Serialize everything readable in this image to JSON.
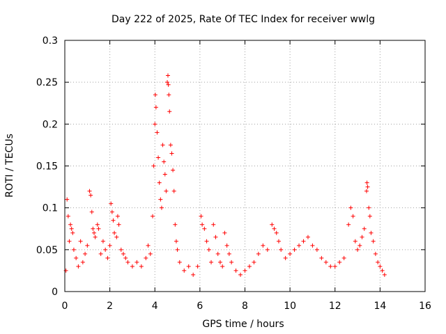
{
  "chart_data": {
    "type": "scatter",
    "title": "Day 222 of 2025, Rate Of TEC Index for receiver wwlg",
    "xlabel": "GPS time / hours",
    "ylabel": "ROTI / TECUs",
    "xlim": [
      0,
      16
    ],
    "ylim": [
      0,
      0.3
    ],
    "x_ticks": [
      0,
      2,
      4,
      6,
      8,
      10,
      12,
      14,
      16
    ],
    "x_tick_labels": [
      "0",
      "2",
      "4",
      "6",
      "8",
      "10",
      "12",
      "14",
      "16"
    ],
    "y_ticks": [
      0,
      0.05,
      0.1,
      0.15,
      0.2,
      0.25,
      0.3
    ],
    "y_tick_labels": [
      "0",
      "0.05",
      "0.1",
      "0.15",
      "0.2",
      "0.25",
      "0.3"
    ],
    "grid": true,
    "marker": "+",
    "series": [
      {
        "name": "ROTI",
        "color": "#ff0000",
        "points": [
          [
            0.05,
            0.025
          ],
          [
            0.1,
            0.11
          ],
          [
            0.15,
            0.09
          ],
          [
            0.2,
            0.06
          ],
          [
            0.25,
            0.08
          ],
          [
            0.3,
            0.075
          ],
          [
            0.35,
            0.07
          ],
          [
            0.4,
            0.05
          ],
          [
            0.5,
            0.04
          ],
          [
            0.6,
            0.03
          ],
          [
            0.7,
            0.06
          ],
          [
            0.8,
            0.035
          ],
          [
            0.9,
            0.045
          ],
          [
            1.0,
            0.055
          ],
          [
            1.1,
            0.12
          ],
          [
            1.15,
            0.115
          ],
          [
            1.2,
            0.095
          ],
          [
            1.25,
            0.075
          ],
          [
            1.3,
            0.07
          ],
          [
            1.35,
            0.065
          ],
          [
            1.45,
            0.08
          ],
          [
            1.5,
            0.075
          ],
          [
            1.6,
            0.045
          ],
          [
            1.7,
            0.06
          ],
          [
            1.8,
            0.05
          ],
          [
            1.9,
            0.04
          ],
          [
            2.0,
            0.055
          ],
          [
            2.05,
            0.105
          ],
          [
            2.1,
            0.095
          ],
          [
            2.15,
            0.085
          ],
          [
            2.2,
            0.07
          ],
          [
            2.3,
            0.065
          ],
          [
            2.35,
            0.09
          ],
          [
            2.4,
            0.08
          ],
          [
            2.5,
            0.05
          ],
          [
            2.6,
            0.045
          ],
          [
            2.7,
            0.04
          ],
          [
            2.8,
            0.035
          ],
          [
            3.0,
            0.03
          ],
          [
            3.2,
            0.035
          ],
          [
            3.4,
            0.03
          ],
          [
            3.6,
            0.04
          ],
          [
            3.7,
            0.055
          ],
          [
            3.8,
            0.045
          ],
          [
            3.9,
            0.09
          ],
          [
            3.95,
            0.15
          ],
          [
            4.0,
            0.2
          ],
          [
            4.02,
            0.235
          ],
          [
            4.05,
            0.22
          ],
          [
            4.1,
            0.19
          ],
          [
            4.15,
            0.16
          ],
          [
            4.2,
            0.13
          ],
          [
            4.25,
            0.11
          ],
          [
            4.3,
            0.1
          ],
          [
            4.35,
            0.175
          ],
          [
            4.4,
            0.155
          ],
          [
            4.45,
            0.14
          ],
          [
            4.5,
            0.12
          ],
          [
            4.55,
            0.25
          ],
          [
            4.58,
            0.258
          ],
          [
            4.6,
            0.247
          ],
          [
            4.62,
            0.235
          ],
          [
            4.65,
            0.215
          ],
          [
            4.7,
            0.175
          ],
          [
            4.75,
            0.165
          ],
          [
            4.8,
            0.145
          ],
          [
            4.85,
            0.12
          ],
          [
            4.9,
            0.08
          ],
          [
            4.95,
            0.06
          ],
          [
            5.0,
            0.05
          ],
          [
            5.1,
            0.035
          ],
          [
            5.3,
            0.025
          ],
          [
            5.5,
            0.03
          ],
          [
            5.7,
            0.02
          ],
          [
            5.9,
            0.03
          ],
          [
            6.05,
            0.09
          ],
          [
            6.1,
            0.08
          ],
          [
            6.2,
            0.075
          ],
          [
            6.3,
            0.06
          ],
          [
            6.4,
            0.05
          ],
          [
            6.5,
            0.035
          ],
          [
            6.6,
            0.08
          ],
          [
            6.7,
            0.065
          ],
          [
            6.8,
            0.045
          ],
          [
            6.9,
            0.035
          ],
          [
            7.0,
            0.03
          ],
          [
            7.1,
            0.07
          ],
          [
            7.2,
            0.055
          ],
          [
            7.3,
            0.045
          ],
          [
            7.4,
            0.035
          ],
          [
            7.6,
            0.025
          ],
          [
            7.8,
            0.02
          ],
          [
            8.0,
            0.025
          ],
          [
            8.2,
            0.03
          ],
          [
            8.4,
            0.035
          ],
          [
            8.6,
            0.045
          ],
          [
            8.8,
            0.055
          ],
          [
            9.0,
            0.05
          ],
          [
            9.2,
            0.08
          ],
          [
            9.3,
            0.075
          ],
          [
            9.4,
            0.07
          ],
          [
            9.5,
            0.06
          ],
          [
            9.6,
            0.05
          ],
          [
            9.8,
            0.04
          ],
          [
            10.0,
            0.045
          ],
          [
            10.2,
            0.05
          ],
          [
            10.4,
            0.055
          ],
          [
            10.6,
            0.06
          ],
          [
            10.8,
            0.065
          ],
          [
            11.0,
            0.055
          ],
          [
            11.2,
            0.05
          ],
          [
            11.4,
            0.04
          ],
          [
            11.6,
            0.035
          ],
          [
            11.8,
            0.03
          ],
          [
            12.0,
            0.03
          ],
          [
            12.2,
            0.035
          ],
          [
            12.4,
            0.04
          ],
          [
            12.6,
            0.08
          ],
          [
            12.7,
            0.1
          ],
          [
            12.8,
            0.09
          ],
          [
            12.9,
            0.06
          ],
          [
            13.0,
            0.05
          ],
          [
            13.1,
            0.055
          ],
          [
            13.2,
            0.065
          ],
          [
            13.3,
            0.075
          ],
          [
            13.4,
            0.12
          ],
          [
            13.42,
            0.13
          ],
          [
            13.45,
            0.125
          ],
          [
            13.5,
            0.1
          ],
          [
            13.55,
            0.09
          ],
          [
            13.6,
            0.07
          ],
          [
            13.7,
            0.06
          ],
          [
            13.8,
            0.045
          ],
          [
            13.9,
            0.035
          ],
          [
            14.0,
            0.03
          ],
          [
            14.1,
            0.025
          ],
          [
            14.2,
            0.02
          ]
        ]
      }
    ]
  }
}
